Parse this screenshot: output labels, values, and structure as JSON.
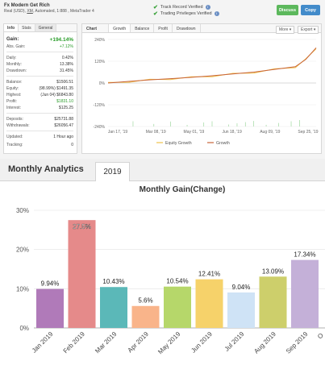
{
  "system": {
    "title": "Fx Modern Get Rich",
    "subtitle_pre": "Real (USD), ",
    "broker": "XM",
    "subtitle_post": ", Automated, 1:888 , MetaTrader 4"
  },
  "verification": [
    {
      "label": "Track Record Verified"
    },
    {
      "label": "Trading Privileges Verified"
    }
  ],
  "buttons": {
    "discuss": "Discuss",
    "copy": "Copy"
  },
  "info_panel": {
    "tabs": [
      "Info",
      "Stats",
      "General"
    ],
    "gain_label": "Gain:",
    "gain_value": "+194.14%",
    "abs_gain_label": "Abs. Gain:",
    "abs_gain_value": "+7.12%",
    "rows1": [
      {
        "k": "Daily:",
        "v": "0.42%"
      },
      {
        "k": "Monthly:",
        "v": "13.38%"
      },
      {
        "k": "Drawdown:",
        "v": "31.45%"
      }
    ],
    "rows2": [
      {
        "k": "Balance:",
        "v": "$1506.51"
      },
      {
        "k": "Equity:",
        "v": "(98.99%) $1491.35"
      },
      {
        "k": "Highest:",
        "v": "(Jun 04) $6843.80"
      },
      {
        "k": "Profit:",
        "v": "$1831.10"
      },
      {
        "k": "Interest:",
        "v": "$125.25"
      }
    ],
    "rows3": [
      {
        "k": "Deposits:",
        "v": "$25731.88"
      },
      {
        "k": "Withdrawals:",
        "v": "$26056.47"
      }
    ],
    "rows4": [
      {
        "k": "Updated:",
        "v": "1 Hour ago"
      },
      {
        "k": "Tracking:",
        "v": "0"
      }
    ]
  },
  "chart_panel": {
    "tabs": [
      "Chart",
      "Growth",
      "Balance",
      "Profit",
      "Drawdown"
    ],
    "more": "More",
    "export": "Export"
  },
  "analytics": {
    "title": "Monthly Analytics",
    "year_tab": "2019"
  },
  "chart_data": [
    {
      "type": "line",
      "title": "",
      "y_ticks": [
        "240%",
        "120%",
        "0%",
        "-120%",
        "-240%"
      ],
      "ylim": [
        -240,
        240
      ],
      "x_ticks": [
        "Jan 17, '19",
        "Mar 08, '19",
        "May 01, '19",
        "Jun 18, '19",
        "Aug 09, '19",
        "Sep 25, '19"
      ],
      "legend": [
        "Equity Growth",
        "Growth"
      ],
      "colors": {
        "equity": "#f0c24a",
        "growth": "#c8643a"
      },
      "series": [
        {
          "name": "Growth",
          "x": [
            0,
            0.1,
            0.2,
            0.3,
            0.4,
            0.5,
            0.6,
            0.7,
            0.8,
            0.9,
            0.95,
            1.0
          ],
          "values": [
            0,
            9,
            17,
            24,
            31,
            40,
            50,
            60,
            75,
            90,
            130,
            194
          ]
        }
      ]
    },
    {
      "type": "bar",
      "title": "Monthly Gain(Change)",
      "categories": [
        "Jan 2019",
        "Feb 2019",
        "Mar 2019",
        "Apr 2019",
        "May 2019",
        "Jun 2019",
        "Jul 2019",
        "Aug 2019",
        "Sep 2019"
      ],
      "values": [
        9.94,
        27.5,
        10.43,
        5.6,
        10.54,
        12.41,
        9.04,
        13.09,
        17.34
      ],
      "labels": [
        "9.94%",
        "27.5%",
        "10.43%",
        "5.6%",
        "10.54%",
        "12.41%",
        "9.04%",
        "13.09%",
        "17.34%"
      ],
      "colors": [
        "#b07ab9",
        "#e58a8a",
        "#5bb8b8",
        "#f9b48a",
        "#b6d76a",
        "#f6d26a",
        "#cfe3f6",
        "#cdcf6b",
        "#c4b0d8"
      ],
      "y_ticks": [
        "0%",
        "10%",
        "20%",
        "30%"
      ],
      "ylim": [
        0,
        30
      ],
      "x_overflow_label": "O"
    }
  ]
}
